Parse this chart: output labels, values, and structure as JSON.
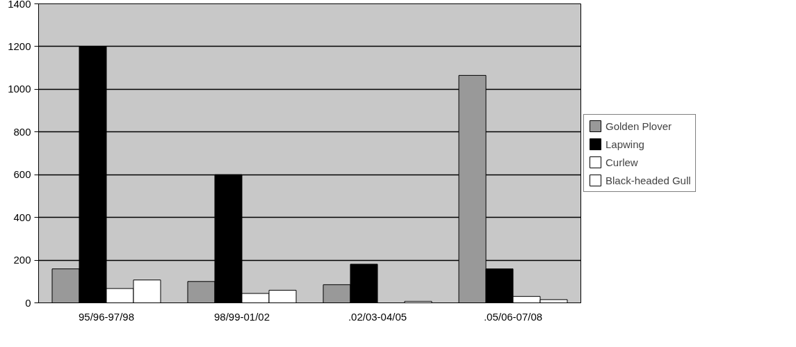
{
  "chart_data": {
    "type": "bar",
    "categories": [
      "95/96-97/98",
      "98/99-01/02",
      ".02/03-04/05",
      ".05/06-07/08"
    ],
    "series": [
      {
        "name": "Golden Plover",
        "color": "#999999",
        "values": [
          159,
          100,
          85,
          1065
        ]
      },
      {
        "name": "Lapwing",
        "color": "#000000",
        "values": [
          1200,
          600,
          181,
          159
        ]
      },
      {
        "name": "Curlew",
        "color": "#ffffff",
        "values": [
          67,
          44,
          null,
          30
        ]
      },
      {
        "name": "Black-headed Gull",
        "color": "#ffffff",
        "values": [
          107,
          59,
          7,
          15
        ]
      }
    ],
    "ylim": [
      0,
      1400
    ],
    "yticks": [
      0,
      200,
      400,
      600,
      800,
      1000,
      1200,
      1400
    ],
    "grid": "y",
    "legend": "right"
  }
}
